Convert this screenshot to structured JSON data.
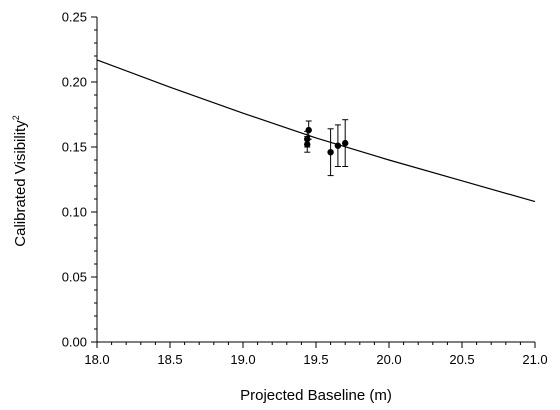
{
  "chart_data": {
    "type": "scatter",
    "title": "",
    "xlabel": "Projected Baseline (m)",
    "ylabel": "Calibrated Visibility",
    "ylabel_superscript": "2",
    "xlim": [
      18.0,
      21.0
    ],
    "ylim": [
      0.0,
      0.25
    ],
    "x_ticks": [
      "18.0",
      "18.5",
      "19.0",
      "19.5",
      "20.0",
      "20.5",
      "21.0"
    ],
    "y_ticks": [
      "0.00",
      "0.05",
      "0.10",
      "0.15",
      "0.20",
      "0.25"
    ],
    "grid": false,
    "legend": "none",
    "series": [
      {
        "type": "scatter",
        "with_error_bars": true,
        "points": [
          {
            "x": 19.44,
            "y": 0.152,
            "err": 0.006
          },
          {
            "x": 19.44,
            "y": 0.156,
            "err": 0.006
          },
          {
            "x": 19.45,
            "y": 0.163,
            "err": 0.007
          },
          {
            "x": 19.6,
            "y": 0.146,
            "err": 0.018
          },
          {
            "x": 19.65,
            "y": 0.151,
            "err": 0.016
          },
          {
            "x": 19.7,
            "y": 0.153,
            "err": 0.018
          }
        ]
      },
      {
        "type": "line",
        "x": [
          18.0,
          18.5,
          19.0,
          19.5,
          20.0,
          20.5,
          21.0
        ],
        "y": [
          0.217,
          0.196,
          0.176,
          0.157,
          0.14,
          0.124,
          0.108
        ]
      }
    ],
    "colors": {
      "marker": "#000000",
      "line": "#000000",
      "axis": "#000000"
    }
  }
}
